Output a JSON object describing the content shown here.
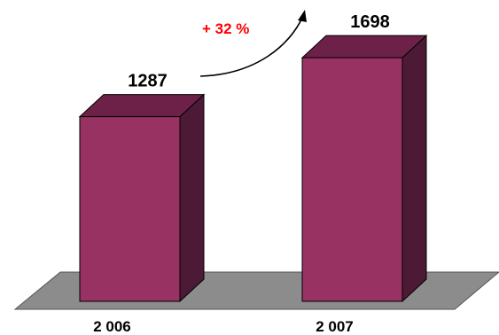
{
  "chart_data": {
    "type": "bar",
    "style": "3d",
    "categories": [
      "2 006",
      "2 007"
    ],
    "values": [
      1287,
      1698
    ],
    "value_labels": [
      "1287",
      "1698"
    ],
    "annotation": "+ 32 %",
    "ylim": [
      0,
      2100
    ],
    "grid": false,
    "legend": "none",
    "colors": {
      "bar_front": "#983263",
      "bar_top": "#6e2148",
      "bar_side": "#4d1a35",
      "floor": "#8c8c8c",
      "annotation": "#ff0000",
      "arrow": "#000000"
    }
  }
}
